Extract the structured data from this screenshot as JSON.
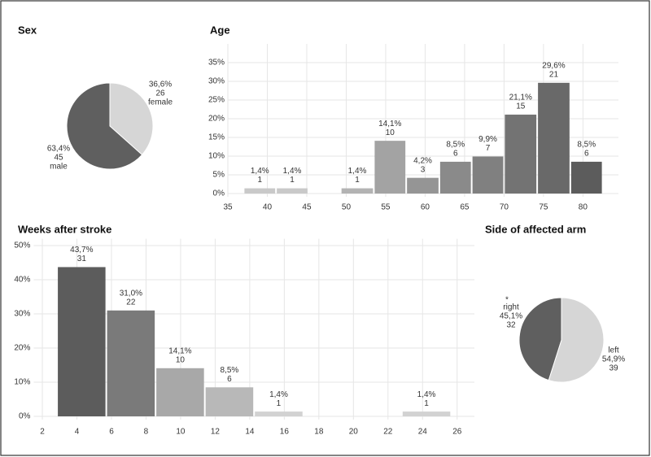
{
  "chart_data": [
    {
      "type": "pie",
      "title": "Sex",
      "categories": [
        "female",
        "male"
      ],
      "values": [
        36.6,
        63.4
      ],
      "value_labels": [
        "36,6%",
        "63,4%"
      ],
      "counts": [
        26,
        45
      ],
      "colors": [
        "#d6d6d6",
        "#5f5f5f"
      ]
    },
    {
      "type": "histogram",
      "title": "Age",
      "bins": [
        37,
        41.1,
        45.2,
        49.3,
        53.5,
        57.6,
        61.8,
        65.9,
        70,
        74.2,
        78.4,
        82.5
      ],
      "values": [
        1.4,
        1.4,
        0,
        1.4,
        14.1,
        4.2,
        8.5,
        9.9,
        21.1,
        29.6,
        8.5
      ],
      "value_labels": [
        "1,4%",
        "1,4%",
        null,
        "1,4%",
        "14,1%",
        "4,2%",
        "8,5%",
        "9,9%",
        "21,1%",
        "29,6%",
        "8,5%"
      ],
      "counts": [
        1,
        1,
        null,
        1,
        10,
        3,
        6,
        7,
        15,
        21,
        6
      ],
      "colors": [
        "#c9c9c9",
        "#c9c9c9",
        "#c9c9c9",
        "#b3b3b3",
        "#a3a3a3",
        "#959595",
        "#8a8a8a",
        "#808080",
        "#737373",
        "#696969",
        "#5c5c5c"
      ],
      "xlim": [
        35,
        84.5
      ],
      "xticks": [
        35,
        40,
        45,
        50,
        55,
        60,
        65,
        70,
        75,
        80
      ],
      "ylim": [
        0,
        40
      ],
      "yticks": [
        {
          "value": 0,
          "label": "0%"
        },
        {
          "value": 5,
          "label": "5%"
        },
        {
          "value": 10,
          "label": "10%"
        },
        {
          "value": 15,
          "label": "15%"
        },
        {
          "value": 20,
          "label": "20%"
        },
        {
          "value": 25,
          "label": "25%"
        },
        {
          "value": 30,
          "label": "30%"
        },
        {
          "value": 35,
          "label": "35%"
        }
      ],
      "grid": true
    },
    {
      "type": "histogram",
      "title": "Weeks after stroke",
      "bins": [
        2.85,
        5.7,
        8.55,
        11.4,
        14.25,
        17.1,
        19.95,
        22.8,
        25.65
      ],
      "values": [
        43.7,
        31.0,
        14.1,
        8.5,
        1.4,
        0,
        0,
        1.4
      ],
      "value_labels": [
        "43,7%",
        "31,0%",
        "14,1%",
        "8,5%",
        "1,4%",
        null,
        null,
        "1,4%"
      ],
      "counts": [
        31,
        22,
        10,
        6,
        1,
        null,
        null,
        1
      ],
      "colors": [
        "#5c5c5c",
        "#7a7a7a",
        "#a8a8a8",
        "#b8b8b8",
        "#d2d2d2",
        "#d2d2d2",
        "#d2d2d2",
        "#d2d2d2"
      ],
      "xlim": [
        1.5,
        27
      ],
      "xticks": [
        2,
        4,
        6,
        8,
        10,
        12,
        14,
        16,
        18,
        20,
        22,
        24,
        26
      ],
      "ylim": [
        0,
        52
      ],
      "yticks": [
        {
          "value": 0,
          "label": "0%"
        },
        {
          "value": 10,
          "label": "10%"
        },
        {
          "value": 20,
          "label": "20%"
        },
        {
          "value": 30,
          "label": "30%"
        },
        {
          "value": 40,
          "label": "40%"
        },
        {
          "value": 50,
          "label": "50%"
        }
      ],
      "grid": true
    },
    {
      "type": "pie",
      "title": "Side of affected arm",
      "categories": [
        "left",
        "right"
      ],
      "values": [
        54.9,
        45.1
      ],
      "value_labels": [
        "54,9%",
        "45,1%"
      ],
      "counts": [
        39,
        32
      ],
      "colors": [
        "#d6d6d6",
        "#5f5f5f"
      ],
      "annotation": "*"
    }
  ]
}
